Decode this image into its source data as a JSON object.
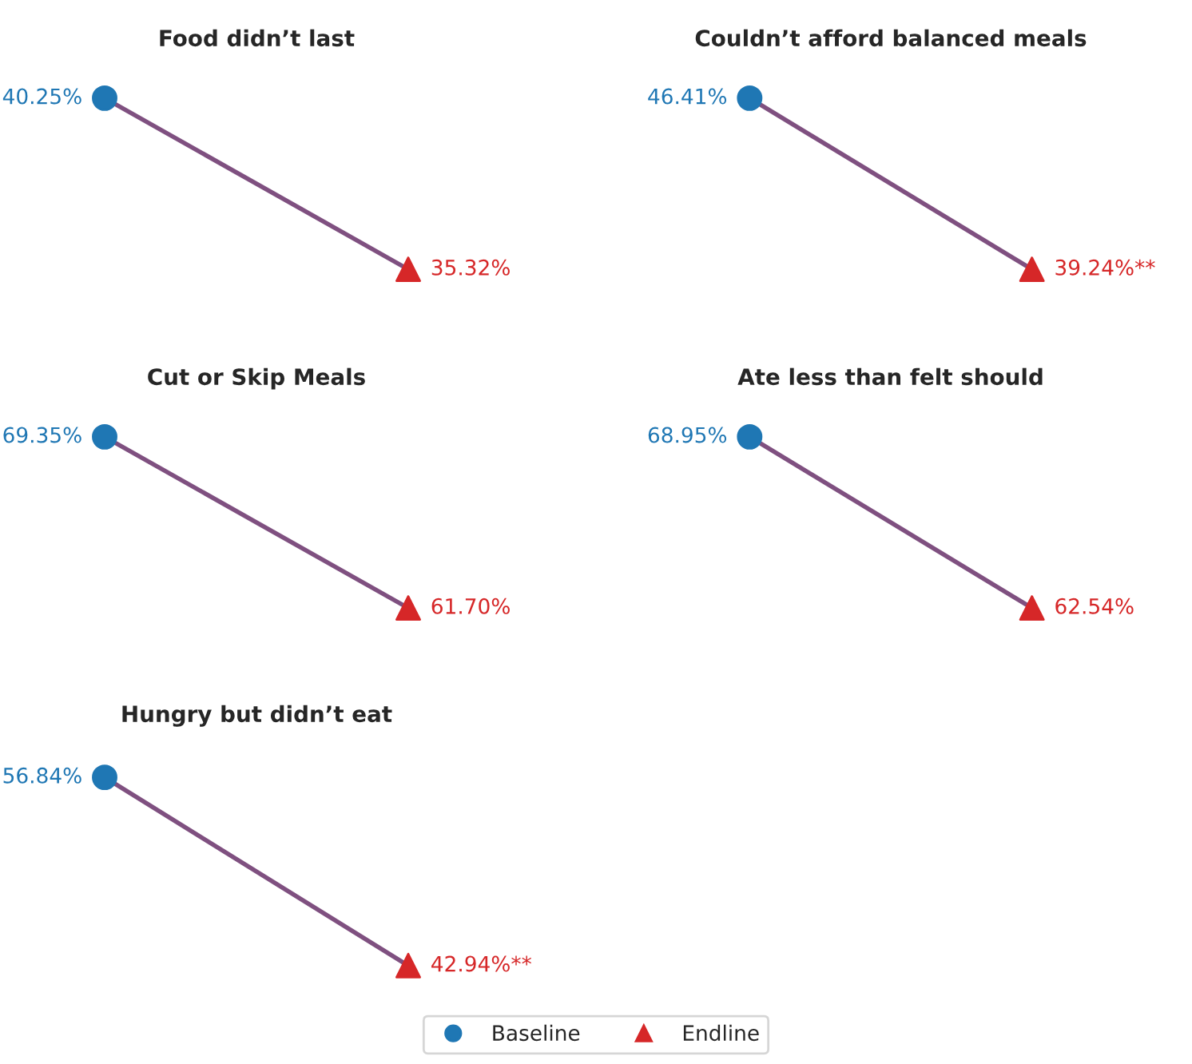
{
  "chart_data": [
    {
      "type": "line",
      "title": "Food didn’t last",
      "categories": [
        null,
        null
      ],
      "series": [
        {
          "color": "#7f5080",
          "colors": [
            "#1f77b4",
            "#d62728"
          ],
          "marker": [
            "circle",
            "triangle"
          ],
          "values": [
            40.25,
            35.32
          ],
          "value_labels": [
            "40.25%",
            "35.32%"
          ]
        }
      ],
      "tick_labels": false
    },
    {
      "type": "line",
      "title": "Couldn’t afford balanced meals",
      "categories": [
        null,
        null
      ],
      "series": [
        {
          "color": "#7f5080",
          "colors": [
            "#1f77b4",
            "#d62728"
          ],
          "marker": [
            "circle",
            "triangle"
          ],
          "values": [
            46.41,
            39.24
          ],
          "value_labels": [
            "46.41%",
            "39.24%**"
          ]
        }
      ],
      "tick_labels": false
    },
    {
      "type": "line",
      "title": "Cut or Skip Meals",
      "categories": [
        null,
        null
      ],
      "series": [
        {
          "color": "#7f5080",
          "colors": [
            "#1f77b4",
            "#d62728"
          ],
          "marker": [
            "circle",
            "triangle"
          ],
          "values": [
            69.35,
            61.7
          ],
          "value_labels": [
            "69.35%",
            "61.70%"
          ]
        }
      ],
      "tick_labels": false
    },
    {
      "type": "line",
      "title": "Ate less than felt should",
      "categories": [
        null,
        null
      ],
      "series": [
        {
          "color": "#7f5080",
          "colors": [
            "#1f77b4",
            "#d62728"
          ],
          "marker": [
            "circle",
            "triangle"
          ],
          "values": [
            68.95,
            62.54
          ],
          "value_labels": [
            "68.95%",
            "62.54%"
          ]
        }
      ],
      "tick_labels": false
    },
    {
      "type": "line",
      "title": "Hungry but didn’t eat",
      "categories": [
        null,
        null
      ],
      "series": [
        {
          "color": "#7f5080",
          "colors": [
            "#1f77b4",
            "#d62728"
          ],
          "marker": [
            "circle",
            "triangle"
          ],
          "values": [
            56.84,
            42.94
          ],
          "value_labels": [
            "56.84%",
            "42.94%**"
          ]
        }
      ],
      "tick_labels": false
    },
    {
      "type": "other",
      "categories": [
        "Baseline",
        "Endline"
      ],
      "colors": [
        "#1f77b4",
        "#d62728"
      ]
    }
  ]
}
